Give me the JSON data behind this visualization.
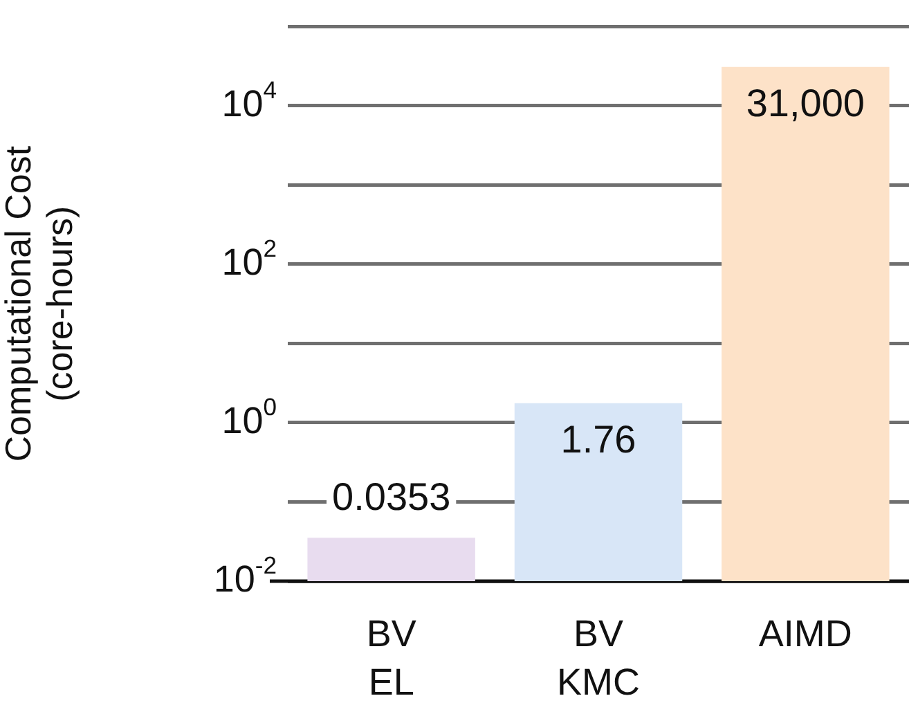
{
  "chart_data": {
    "type": "bar",
    "ylabel": "Computational Cost\n(core-hours)",
    "categories": [
      "BV\nEL",
      "BV\nKMC",
      "AIMD"
    ],
    "values": [
      0.0353,
      1.76,
      31000
    ],
    "colors": [
      "#e8dcef",
      "#d8e6f7",
      "#fde2c8"
    ],
    "value_labels": [
      "0.0353",
      "1.76",
      "31,000"
    ],
    "log": true,
    "grid": "y",
    "legend": false,
    "ylim": [
      0.01,
      100000
    ],
    "yticks": [
      {
        "value": 0.01,
        "label": "10$^{-2}$"
      },
      {
        "value": 0.1,
        "label": null
      },
      {
        "value": 1,
        "label": "10$^{0}$"
      },
      {
        "value": 10,
        "label": null
      },
      {
        "value": 100,
        "label": "10$^{2}$"
      },
      {
        "value": 1000,
        "label": null
      },
      {
        "value": 10000,
        "label": "10$^{4}$"
      },
      {
        "value": 100000,
        "label": null
      }
    ]
  }
}
